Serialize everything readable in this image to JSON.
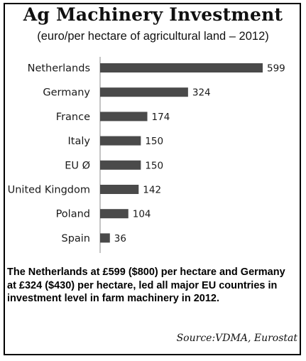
{
  "title": "Ag Machinery Investment",
  "subtitle": "(euro/per hectare of agricultural land – 2012)",
  "chart_data": {
    "type": "bar",
    "orientation": "horizontal",
    "categories": [
      "Netherlands",
      "Germany",
      "France",
      "Italy",
      "EU Ø",
      "United Kingdom",
      "Poland",
      "Spain"
    ],
    "values": [
      599,
      324,
      174,
      150,
      150,
      142,
      104,
      36
    ],
    "data_labels": [
      "599",
      "324",
      "174",
      "150",
      "150",
      "142",
      "104",
      "36"
    ],
    "xlim": [
      0,
      599
    ],
    "bar_color": "#4a4a4a",
    "grid": false,
    "legend": "none"
  },
  "caption": "The Netherlands at £599 ($800) per hectare and Germany at £324 ($430) per hectare, led all major EU countries in investment level in farm machinery in 2012.",
  "source": "Source:VDMA, Eurostat"
}
